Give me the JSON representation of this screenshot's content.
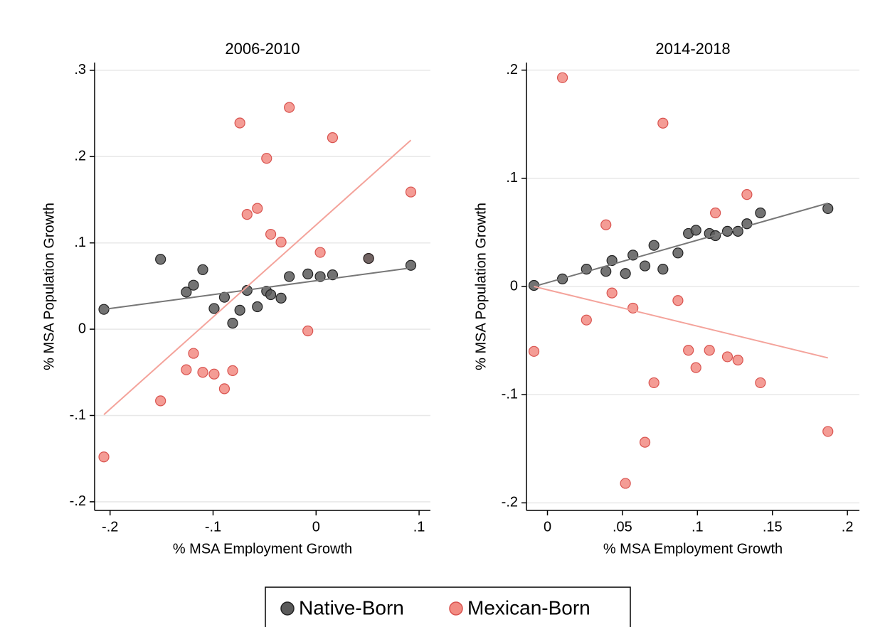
{
  "chart_data": [
    {
      "type": "scatter",
      "title": "2006-2010",
      "x_label": "% MSA Employment Growth",
      "y_label": "% MSA Population Growth",
      "xlim": [
        -0.215,
        0.111
      ],
      "ylim": [
        -0.21,
        0.309
      ],
      "xticks": [
        {
          "value": -0.2,
          "label": "-.2"
        },
        {
          "value": -0.1,
          "label": "-.1"
        },
        0,
        {
          "value": 0.1,
          "label": ".1"
        }
      ],
      "yticks": [
        {
          "value": -0.2,
          "label": "-.2"
        },
        {
          "value": -0.1,
          "label": "-.1"
        },
        0,
        {
          "value": 0.1,
          "label": ".1"
        },
        {
          "value": 0.2,
          "label": ".2"
        },
        {
          "value": 0.3,
          "label": ".3"
        }
      ],
      "grid": true,
      "series": [
        {
          "name": "Native-Born",
          "color": "#5a5a5a",
          "line_color": "#777777",
          "x": [
            -0.206,
            -0.151,
            -0.126,
            -0.119,
            -0.11,
            -0.099,
            -0.089,
            -0.081,
            -0.074,
            -0.067,
            -0.057,
            -0.048,
            -0.044,
            -0.034,
            -0.026,
            -0.008,
            0.004,
            0.016,
            0.051,
            0.092
          ],
          "y": [
            0.023,
            0.081,
            0.043,
            0.051,
            0.069,
            0.024,
            0.037,
            0.007,
            0.022,
            0.045,
            0.026,
            0.044,
            0.04,
            0.036,
            0.061,
            0.064,
            0.061,
            0.063,
            0.082,
            0.074
          ],
          "fit": {
            "x": [
              -0.206,
              0.092
            ],
            "y": [
              0.023,
              0.071
            ]
          }
        },
        {
          "name": "Mexican-Born",
          "color": "#f28b82",
          "line_color": "#f4a39b",
          "x": [
            -0.206,
            -0.151,
            -0.126,
            -0.119,
            -0.11,
            -0.099,
            -0.089,
            -0.081,
            -0.074,
            -0.067,
            -0.057,
            -0.048,
            -0.044,
            -0.034,
            -0.026,
            -0.008,
            0.004,
            0.016,
            0.051,
            0.092
          ],
          "y": [
            -0.148,
            -0.083,
            -0.047,
            -0.028,
            -0.05,
            -0.052,
            -0.069,
            -0.048,
            0.239,
            0.133,
            0.14,
            0.198,
            0.11,
            0.101,
            0.257,
            -0.002,
            0.089,
            0.222,
            0.082,
            0.159
          ],
          "fit": {
            "x": [
              -0.206,
              0.092
            ],
            "y": [
              -0.099,
              0.219
            ]
          }
        }
      ]
    },
    {
      "type": "scatter",
      "title": "2014-2018",
      "x_label": "% MSA Employment Growth",
      "y_label": "% MSA Population Growth",
      "xlim": [
        -0.014,
        0.208
      ],
      "ylim": [
        -0.207,
        0.207
      ],
      "xticks": [
        0,
        {
          "value": 0.05,
          "label": ".05"
        },
        {
          "value": 0.1,
          "label": ".1"
        },
        {
          "value": 0.15,
          "label": ".15"
        },
        {
          "value": 0.2,
          "label": ".2"
        }
      ],
      "yticks": [
        {
          "value": -0.2,
          "label": "-.2"
        },
        {
          "value": -0.1,
          "label": "-.1"
        },
        0,
        {
          "value": 0.1,
          "label": ".1"
        },
        {
          "value": 0.2,
          "label": ".2"
        }
      ],
      "grid": true,
      "series": [
        {
          "color": "#5a5a5a",
          "line_color": "#777777",
          "x": [
            -0.009,
            0.01,
            0.026,
            0.039,
            0.043,
            0.052,
            0.057,
            0.065,
            0.071,
            0.077,
            0.087,
            0.094,
            0.099,
            0.108,
            0.112,
            0.12,
            0.127,
            0.133,
            0.142,
            0.187
          ],
          "y": [
            0.001,
            0.007,
            0.016,
            0.014,
            0.024,
            0.012,
            0.029,
            0.019,
            0.038,
            0.016,
            0.031,
            0.049,
            0.052,
            0.049,
            0.047,
            0.051,
            0.051,
            0.058,
            0.068,
            0.072
          ],
          "fit": {
            "x": [
              -0.009,
              0.187
            ],
            "y": [
              0.0,
              0.077
            ]
          }
        },
        {
          "color": "#f28b82",
          "line_color": "#f4a39b",
          "x": [
            -0.009,
            0.01,
            0.026,
            0.039,
            0.043,
            0.052,
            0.057,
            0.065,
            0.071,
            0.077,
            0.087,
            0.094,
            0.099,
            0.108,
            0.112,
            0.12,
            0.127,
            0.133,
            0.142,
            0.187
          ],
          "y": [
            -0.06,
            0.193,
            -0.031,
            0.057,
            -0.006,
            -0.182,
            -0.02,
            -0.144,
            -0.089,
            0.151,
            -0.013,
            -0.059,
            -0.075,
            -0.059,
            0.068,
            -0.065,
            -0.068,
            0.085,
            -0.089,
            -0.134
          ],
          "fit": {
            "x": [
              -0.009,
              0.187
            ],
            "y": [
              0.0,
              -0.066
            ]
          }
        }
      ]
    }
  ]
}
